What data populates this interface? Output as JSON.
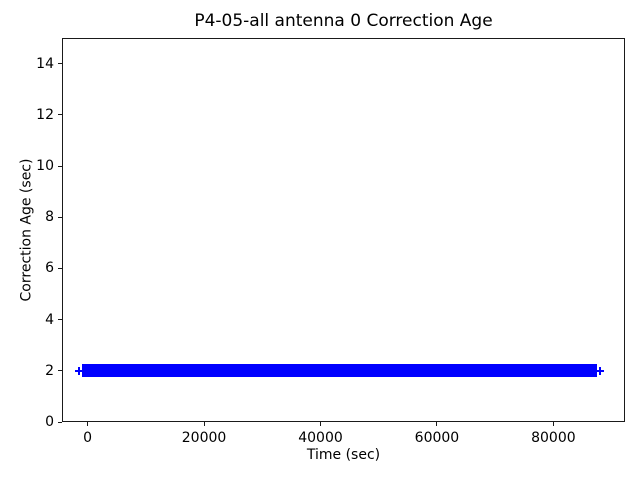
{
  "chart_data": {
    "type": "line",
    "title": "P4-05-all antenna 0 Correction Age",
    "xlabel": "Time (sec)",
    "ylabel": "Correction Age (sec)",
    "xlim": [
      -4400,
      92300
    ],
    "ylim": [
      0,
      15
    ],
    "xticks": [
      0,
      20000,
      40000,
      60000,
      80000
    ],
    "yticks": [
      0,
      2,
      4,
      6,
      8,
      10,
      12,
      14
    ],
    "grid": false,
    "legend_position": "none",
    "series": [
      {
        "name": "antenna 0 correction age",
        "color": "#0000ff",
        "marker": "+",
        "description": "correction age is a constant 2 seconds across the full time span; dense samples form a solid horizontal band at y=2",
        "dense_segment": {
          "t_start": 0,
          "t_end": 86400,
          "y": 2
        },
        "outlier_points": [
          {
            "t": -1500,
            "y": 2
          },
          {
            "t": 88000,
            "y": 2
          }
        ]
      }
    ]
  }
}
